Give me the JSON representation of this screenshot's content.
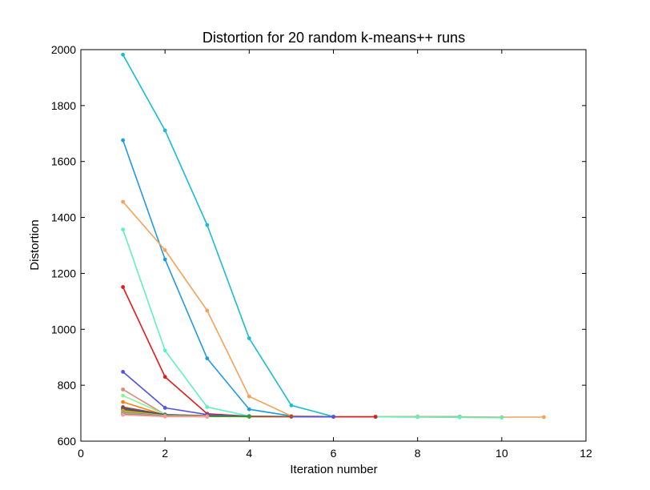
{
  "chart_data": {
    "type": "line",
    "title": "Distortion for 20 random k-means++ runs",
    "xlabel": "Iteration number",
    "ylabel": "Distortion",
    "xlim": [
      0,
      12
    ],
    "ylim": [
      600,
      2000
    ],
    "xticks": [
      0,
      2,
      4,
      6,
      8,
      10,
      12
    ],
    "yticks": [
      600,
      800,
      1000,
      1200,
      1400,
      1600,
      1800,
      2000
    ],
    "grid": false,
    "legend": "none",
    "series": [
      {
        "color": "#17becf",
        "x": [
          1,
          2,
          3,
          4,
          5,
          6,
          7,
          8,
          9
        ],
        "values": [
          1982,
          1711,
          1373,
          968,
          728,
          688,
          688,
          688,
          688
        ]
      },
      {
        "color": "#1f9be0",
        "x": [
          1,
          2,
          3,
          4,
          5,
          6,
          7,
          8,
          9,
          10
        ],
        "values": [
          1676,
          1250,
          896,
          714,
          690,
          687,
          687,
          687,
          686,
          685
        ]
      },
      {
        "color": "#f4a259",
        "x": [
          1,
          2,
          3,
          4,
          5,
          6,
          7,
          8,
          9,
          10,
          11
        ],
        "values": [
          1456,
          1283,
          1067,
          760,
          690,
          688,
          688,
          688,
          687,
          686,
          686
        ]
      },
      {
        "color": "#5ff0c2",
        "x": [
          1,
          2,
          3,
          4,
          5,
          6,
          7,
          8,
          9,
          10
        ],
        "values": [
          1357,
          924,
          722,
          690,
          688,
          688,
          687,
          686,
          685,
          684
        ]
      },
      {
        "color": "#e31a1c",
        "x": [
          1,
          2,
          3,
          4,
          5,
          6,
          7
        ],
        "values": [
          1151,
          830,
          698,
          689,
          688,
          687,
          687
        ]
      },
      {
        "color": "#5252e6",
        "x": [
          1,
          2,
          3,
          4,
          5,
          6
        ],
        "values": [
          848,
          719,
          695,
          688,
          687,
          687
        ]
      },
      {
        "color": "#d98a7a",
        "x": [
          1,
          2,
          3,
          4,
          5
        ],
        "values": [
          785,
          695,
          690,
          688,
          687
        ]
      },
      {
        "color": "#8ef0a0",
        "x": [
          1,
          2,
          3,
          4
        ],
        "values": [
          763,
          696,
          689,
          688
        ]
      },
      {
        "color": "#ff7f0e",
        "x": [
          1,
          2,
          3,
          4
        ],
        "values": [
          740,
          693,
          689,
          688
        ]
      },
      {
        "color": "#a0522d",
        "x": [
          1,
          2,
          3,
          4,
          5
        ],
        "values": [
          722,
          695,
          691,
          688,
          688
        ]
      },
      {
        "color": "#1a5fb4",
        "x": [
          1,
          2,
          3,
          4
        ],
        "values": [
          718,
          694,
          690,
          689
        ]
      },
      {
        "color": "#d62728",
        "x": [
          1,
          2,
          3,
          4
        ],
        "values": [
          714,
          692,
          689,
          688
        ]
      },
      {
        "color": "#2ca02c",
        "x": [
          1,
          2,
          3,
          4
        ],
        "values": [
          710,
          692,
          689,
          688
        ]
      },
      {
        "color": "#ffd700",
        "x": [
          1,
          2,
          3
        ],
        "values": [
          707,
          691,
          689
        ]
      },
      {
        "color": "#9467bd",
        "x": [
          1,
          2,
          3
        ],
        "values": [
          704,
          690,
          688
        ]
      },
      {
        "color": "#bcbd22",
        "x": [
          1,
          2,
          3
        ],
        "values": [
          701,
          689,
          688
        ]
      },
      {
        "color": "#7fb3d5",
        "x": [
          1,
          2,
          3
        ],
        "values": [
          698,
          690,
          688
        ]
      },
      {
        "color": "#8c564b",
        "x": [
          1,
          2,
          3
        ],
        "values": [
          696,
          689,
          688
        ]
      },
      {
        "color": "#999999",
        "x": [
          1,
          2,
          3
        ],
        "values": [
          695,
          689,
          688
        ]
      },
      {
        "color": "#ff9896",
        "x": [
          1,
          2,
          3
        ],
        "values": [
          694,
          688,
          688
        ]
      }
    ]
  }
}
